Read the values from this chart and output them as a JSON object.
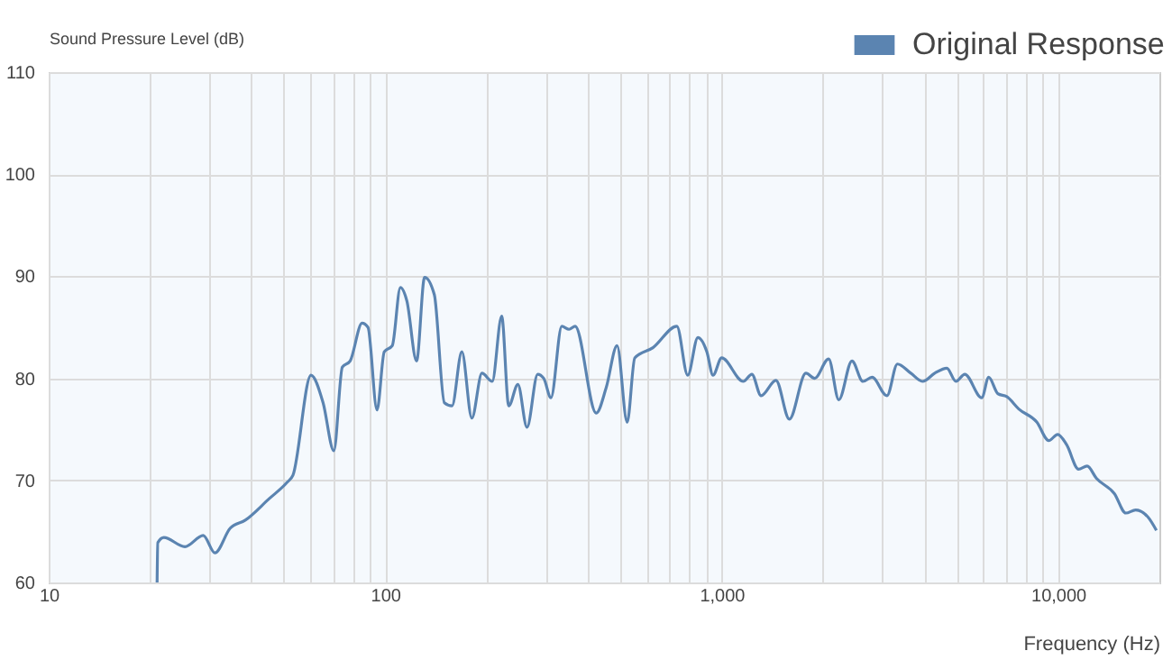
{
  "chart_data": {
    "type": "line",
    "xlabel": "Frequency (Hz)",
    "ylabel": "Sound Pressure Level (dB)",
    "log": "x",
    "grid": true,
    "legend": "top right",
    "marker": "none",
    "line_style": "solid",
    "xlim": [
      10,
      20000
    ],
    "ylim": [
      60,
      110
    ],
    "xticks": [
      10,
      {
        "value": 20,
        "label": null
      },
      {
        "value": 30,
        "label": null
      },
      {
        "value": 40,
        "label": null
      },
      {
        "value": 50,
        "label": null
      },
      {
        "value": 60,
        "label": null
      },
      {
        "value": 70,
        "label": null
      },
      {
        "value": 80,
        "label": null
      },
      {
        "value": 90,
        "label": null
      },
      100,
      {
        "value": 200,
        "label": null
      },
      {
        "value": 300,
        "label": null
      },
      {
        "value": 400,
        "label": null
      },
      {
        "value": 500,
        "label": null
      },
      {
        "value": 600,
        "label": null
      },
      {
        "value": 700,
        "label": null
      },
      {
        "value": 800,
        "label": null
      },
      {
        "value": 900,
        "label": null
      },
      {
        "value": 1000,
        "label": "1,000"
      },
      {
        "value": 2000,
        "label": null
      },
      {
        "value": 3000,
        "label": null
      },
      {
        "value": 4000,
        "label": null
      },
      {
        "value": 5000,
        "label": null
      },
      {
        "value": 6000,
        "label": null
      },
      {
        "value": 7000,
        "label": null
      },
      {
        "value": 8000,
        "label": null
      },
      {
        "value": 9000,
        "label": null
      },
      {
        "value": 10000,
        "label": "10,000"
      }
    ],
    "yticks": [
      60,
      70,
      80,
      90,
      100,
      110
    ],
    "series": [
      {
        "name": "Original Response",
        "color": "#5b84b1",
        "x": [
          21.0,
          21.1,
          22.0,
          25.4,
          28.8,
          31.2,
          34.6,
          38.4,
          45.2,
          51.1,
          53.2,
          60.2,
          65.4,
          70.4,
          74.6,
          78.7,
          85.4,
          88.9,
          94.6,
          99.4,
          105,
          111,
          116,
          124,
          131,
          140,
          150,
          158,
          169,
          181,
          194,
          208,
          222,
          233,
          248,
          264,
          284,
          296,
          311,
          335,
          352,
          367,
          424,
          454,
          489,
          524,
          552,
          625,
          736,
          793,
          850,
          904,
          943,
          1000,
          1160,
          1230,
          1310,
          1450,
          1590,
          1780,
          1890,
          2080,
          2230,
          2440,
          2630,
          2800,
          3100,
          3330,
          3650,
          3960,
          4300,
          4670,
          4970,
          5280,
          5930,
          6220,
          6620,
          7040,
          7640,
          8650,
          9380,
          9970,
          10600,
          11500,
          12200,
          13000,
          14700,
          15900,
          17000,
          18500,
          19600
        ],
        "values": [
          60.0,
          63.9,
          64.4,
          63.5,
          64.6,
          62.9,
          65.3,
          66.1,
          68.2,
          69.8,
          70.5,
          80.3,
          77.6,
          72.9,
          81.1,
          81.7,
          85.4,
          85.0,
          76.9,
          82.6,
          83.2,
          88.9,
          87.6,
          81.7,
          89.9,
          88.2,
          77.6,
          77.3,
          82.6,
          76.1,
          80.5,
          79.7,
          86.1,
          77.3,
          79.4,
          75.2,
          80.4,
          80.0,
          78.1,
          85.1,
          84.8,
          85.1,
          76.6,
          79.1,
          83.2,
          75.7,
          82.0,
          83.0,
          85.1,
          80.3,
          84.0,
          82.6,
          80.3,
          82.0,
          79.7,
          80.4,
          78.3,
          79.8,
          76.0,
          80.5,
          80.0,
          81.9,
          77.9,
          81.7,
          79.7,
          80.1,
          78.3,
          81.4,
          80.5,
          79.7,
          80.5,
          81.0,
          79.7,
          80.4,
          78.1,
          80.1,
          78.5,
          78.2,
          77.0,
          75.7,
          73.9,
          74.5,
          73.5,
          71.1,
          71.4,
          70.2,
          68.7,
          66.8,
          67.1,
          66.4,
          65.1
        ]
      }
    ]
  }
}
